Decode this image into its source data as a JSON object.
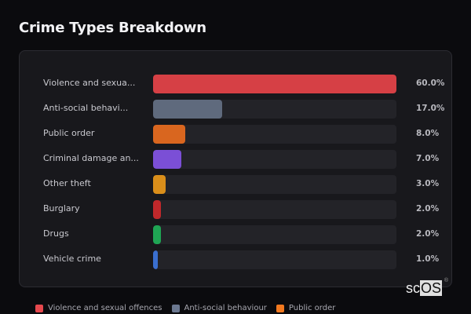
{
  "header": {
    "title": "Crime Types Breakdown"
  },
  "rows": [
    {
      "label": "Violence and sexua...",
      "pct": "60.0%",
      "value": 60,
      "color": "#d64045"
    },
    {
      "label": "Anti-social behavi...",
      "pct": "17.0%",
      "value": 17,
      "color": "#5f6a7d"
    },
    {
      "label": "Public order",
      "pct": "8.0%",
      "value": 8,
      "color": "#d9661f"
    },
    {
      "label": "Criminal damage an...",
      "pct": "7.0%",
      "value": 7,
      "color": "#7b4fd6"
    },
    {
      "label": "Other theft",
      "pct": "3.0%",
      "value": 3,
      "color": "#d98e1a"
    },
    {
      "label": "Burglary",
      "pct": "2.0%",
      "value": 2,
      "color": "#c0282b"
    },
    {
      "label": "Drugs",
      "pct": "2.0%",
      "value": 2,
      "color": "#1fa554"
    },
    {
      "label": "Vehicle crime",
      "pct": "1.0%",
      "value": 1,
      "color": "#3a6fd0"
    }
  ],
  "legend": [
    {
      "label": "Violence and sexual offences",
      "color": "#e5484d"
    },
    {
      "label": "Anti-social behaviour",
      "color": "#6b7890"
    },
    {
      "label": "Public order",
      "color": "#f2791f"
    }
  ],
  "logo": {
    "text_a": "sc",
    "text_b": "OS",
    "reg": "®"
  },
  "chart_data": {
    "type": "bar",
    "orientation": "horizontal",
    "title": "Crime Types Breakdown",
    "categories": [
      "Violence and sexual offences",
      "Anti-social behaviour",
      "Public order",
      "Criminal damage and arson",
      "Other theft",
      "Burglary",
      "Drugs",
      "Vehicle crime"
    ],
    "values": [
      60.0,
      17.0,
      8.0,
      7.0,
      3.0,
      2.0,
      2.0,
      1.0
    ],
    "unit": "%",
    "xlabel": "",
    "ylabel": "",
    "grid": false,
    "legend_position": "bottom"
  }
}
